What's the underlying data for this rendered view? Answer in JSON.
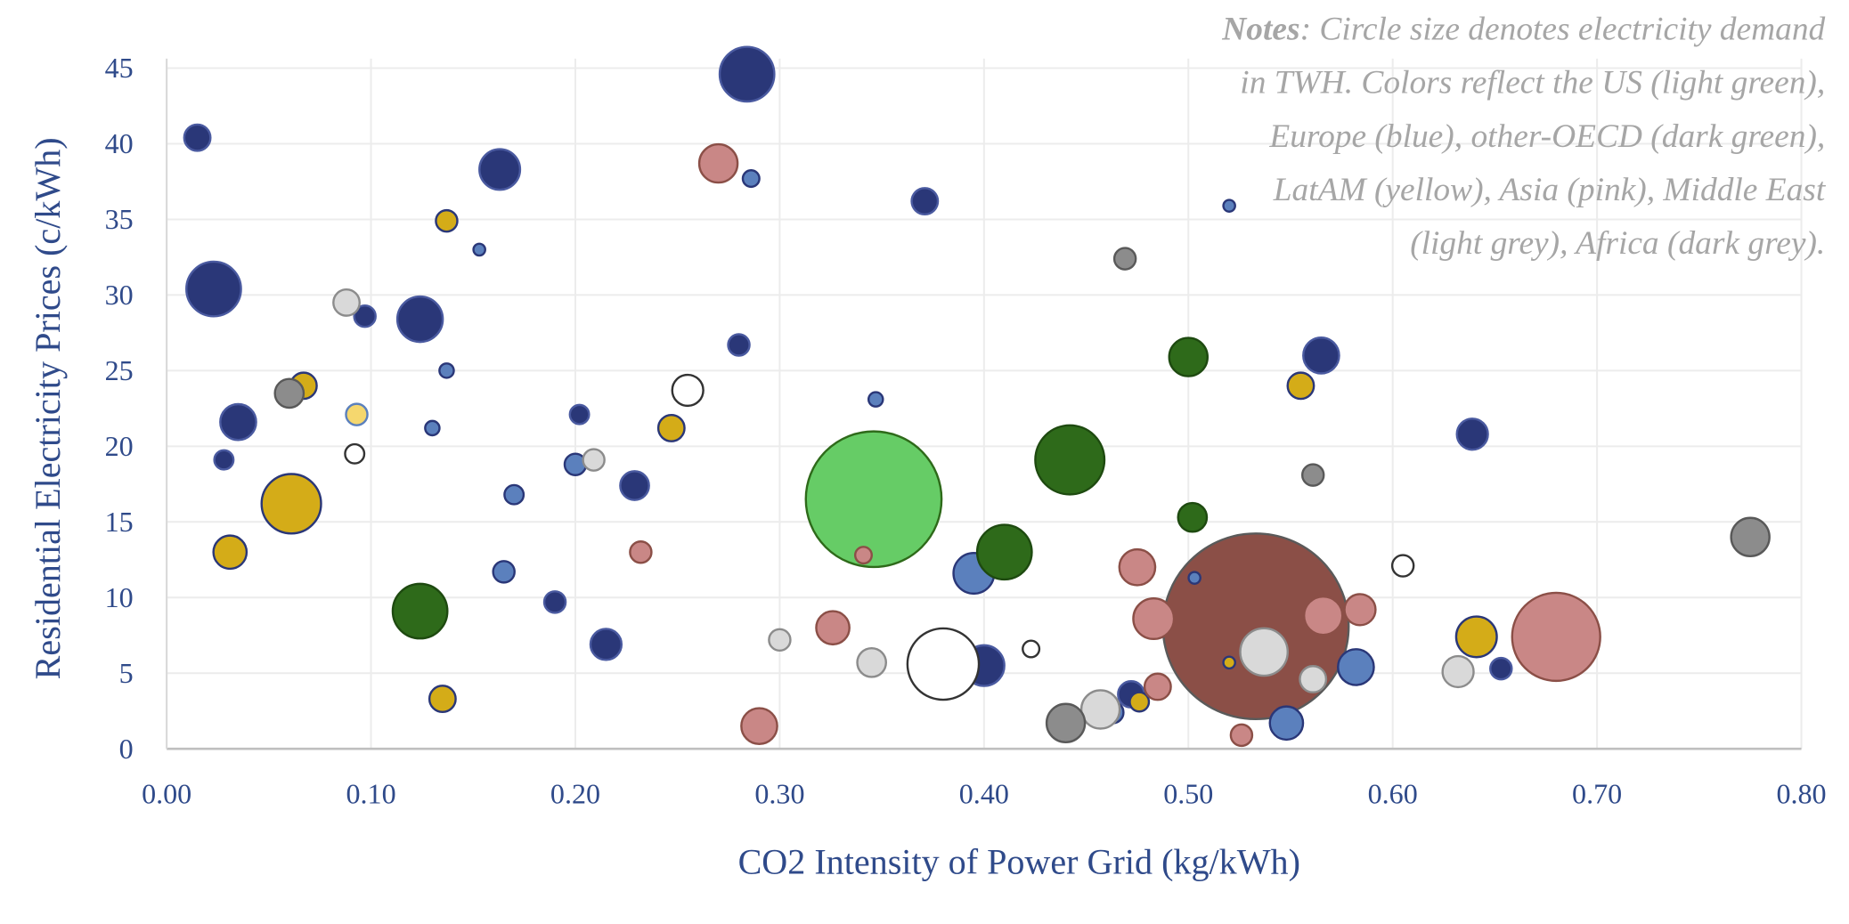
{
  "chart_data": {
    "type": "scatter",
    "xlabel": "CO2 Intensity of Power Grid (kg/kWh)",
    "ylabel": "Residential Electricity Prices (c/kWh)",
    "notes_label": "Notes",
    "notes": [
      ": Circle size denotes electricity demand",
      "in TWH. Colors reflect the US (light green),",
      "Europe (blue), other-OECD (dark green),",
      "LatAM (yellow), Asia (pink), Middle East",
      "(light grey), Africa (dark grey)."
    ],
    "xlim": [
      0,
      0.8
    ],
    "ylim": [
      0,
      45
    ],
    "xticks": [
      {
        "value": 0,
        "label": "0.00"
      },
      {
        "value": 0.1,
        "label": "0.10"
      },
      {
        "value": 0.2,
        "label": "0.20"
      },
      {
        "value": 0.3,
        "label": "0.30"
      },
      {
        "value": 0.4,
        "label": "0.40"
      },
      {
        "value": 0.5,
        "label": "0.50"
      },
      {
        "value": 0.6,
        "label": "0.60"
      },
      {
        "value": 0.7,
        "label": "0.70"
      },
      {
        "value": 0.8,
        "label": "0.80"
      }
    ],
    "yticks": [
      0,
      5,
      10,
      15,
      20,
      25,
      30,
      35,
      40,
      45
    ],
    "grid": true,
    "series": [
      {
        "color": "#66cc66",
        "stroke": "#2e6a1a",
        "x": [
          0.346
        ],
        "y": [
          16.5
        ],
        "sizes": [
          4010
        ]
      },
      {
        "color": "#8b4f47",
        "stroke": "#5a5a5a",
        "x": [
          0.533
        ],
        "y": [
          8.1
        ],
        "sizes": [
          7510
        ]
      },
      {
        "color": "#2a3778",
        "stroke": "#4a5aa0",
        "x": [
          0.015,
          0.023,
          0.028,
          0.035,
          0.097,
          0.124,
          0.163,
          0.19,
          0.202,
          0.215,
          0.229,
          0.28,
          0.284,
          0.371,
          0.4,
          0.472,
          0.565,
          0.639,
          0.653
        ],
        "y": [
          40.4,
          30.4,
          19.1,
          21.6,
          28.6,
          28.4,
          38.3,
          9.7,
          22.1,
          6.9,
          17.4,
          26.7,
          44.6,
          36.2,
          5.5,
          3.6,
          26,
          20.8,
          5.3
        ],
        "sizes": [
          150,
          650,
          80,
          280,
          100,
          450,
          360,
          100,
          80,
          210,
          180,
          100,
          650,
          150,
          360,
          150,
          280,
          210,
          100
        ]
      },
      {
        "color": "#5b80bd",
        "stroke": "#2a3778",
        "x": [
          0.137,
          0.153,
          0.13,
          0.17,
          0.165,
          0.2,
          0.286,
          0.347,
          0.395,
          0.463,
          0.52,
          0.503,
          0.548,
          0.582
        ],
        "y": [
          25,
          33,
          21.2,
          16.8,
          11.7,
          18.8,
          37.7,
          23.1,
          11.6,
          2.4,
          35.9,
          11.3,
          1.7,
          5.4
        ],
        "sizes": [
          45,
          30,
          45,
          80,
          100,
          100,
          60,
          45,
          360,
          100,
          30,
          30,
          240,
          280
        ]
      },
      {
        "color": "#2e6a1a",
        "stroke": "#1e4a10",
        "x": [
          0.124,
          0.41,
          0.442,
          0.5,
          0.502
        ],
        "y": [
          9.1,
          13,
          19.1,
          25.9,
          15.3
        ],
        "sizes": [
          650,
          650,
          1040,
          320,
          180
        ]
      },
      {
        "color": "#d4ac18",
        "stroke": "#2a3778",
        "x": [
          0.031,
          0.061,
          0.067,
          0.137,
          0.135,
          0.247,
          0.476,
          0.52,
          0.555,
          0.641
        ],
        "y": [
          13,
          16.2,
          24,
          34.9,
          3.3,
          21.2,
          3.1,
          5.7,
          24,
          7.4
        ],
        "sizes": [
          240,
          770,
          150,
          100,
          150,
          150,
          80,
          30,
          150,
          360
        ]
      },
      {
        "color": "#f5d76e",
        "stroke": "#5b80bd",
        "x": [
          0.093
        ],
        "y": [
          22.1
        ],
        "sizes": [
          100
        ]
      },
      {
        "color": "#c98786",
        "stroke": "#8b4f47",
        "x": [
          0.27,
          0.232,
          0.29,
          0.326,
          0.341,
          0.475,
          0.483,
          0.485,
          0.526,
          0.566,
          0.584,
          0.68
        ],
        "y": [
          38.7,
          13,
          1.5,
          8,
          12.8,
          12,
          8.6,
          4.1,
          0.9,
          8.8,
          9.2,
          7.4
        ],
        "sizes": [
          320,
          100,
          280,
          240,
          60,
          280,
          360,
          150,
          100,
          320,
          210,
          1690
        ]
      },
      {
        "color": "#d9d9d9",
        "stroke": "#8c8c8c",
        "x": [
          0.088,
          0.209,
          0.3,
          0.345,
          0.457,
          0.537,
          0.561,
          0.632
        ],
        "y": [
          29.5,
          19.1,
          7.2,
          5.7,
          2.6,
          6.4,
          4.6,
          5.1
        ],
        "sizes": [
          150,
          100,
          100,
          180,
          320,
          490,
          150,
          210
        ]
      },
      {
        "color": "#8c8c8c",
        "stroke": "#595959",
        "x": [
          0.06,
          0.469,
          0.44,
          0.561,
          0.775
        ],
        "y": [
          23.5,
          32.4,
          1.7,
          18.1,
          14
        ],
        "sizes": [
          180,
          100,
          320,
          100,
          320
        ]
      },
      {
        "color": "#ffffff",
        "stroke": "#333333",
        "x": [
          0.092,
          0.255,
          0.38,
          0.423,
          0.605
        ],
        "y": [
          19.5,
          23.7,
          5.6,
          6.6,
          12.1
        ],
        "sizes": [
          80,
          210,
          1110,
          60,
          100
        ]
      }
    ]
  }
}
